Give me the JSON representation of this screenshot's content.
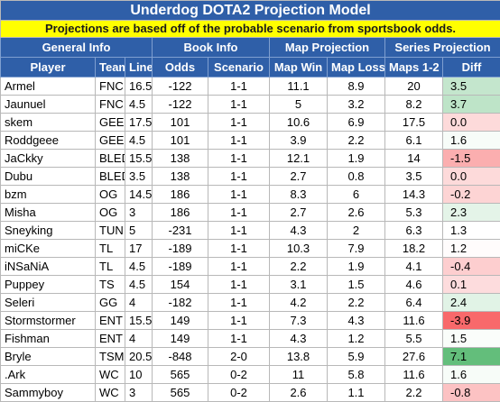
{
  "header": {
    "title": "Underdog DOTA2 Projection Model",
    "subtitle": "Projections are based off of the probable scenario from sportsbook odds."
  },
  "table": {
    "groups": [
      "General Info",
      "Book Info",
      "Map Projection",
      "Series Projection"
    ],
    "columns": [
      "Player",
      "Team",
      "Line",
      "Odds",
      "Scenario",
      "Map Win",
      "Map Loss",
      "Maps 1-2",
      "Diff"
    ],
    "rows": [
      [
        "Armel",
        "FNC",
        "16.5",
        "-122",
        "1-1",
        "11.1",
        "8.9",
        "20",
        "3.5"
      ],
      [
        "Jaunuel",
        "FNC",
        "4.5",
        "-122",
        "1-1",
        "5",
        "3.2",
        "8.2",
        "3.7"
      ],
      [
        "skem",
        "GEEK",
        "17.5",
        "101",
        "1-1",
        "10.6",
        "6.9",
        "17.5",
        "0.0"
      ],
      [
        "Roddgeee",
        "GEEK",
        "4.5",
        "101",
        "1-1",
        "3.9",
        "2.2",
        "6.1",
        "1.6"
      ],
      [
        "JaCkky",
        "BLED",
        "15.5",
        "138",
        "1-1",
        "12.1",
        "1.9",
        "14",
        "-1.5"
      ],
      [
        "Dubu",
        "BLED",
        "3.5",
        "138",
        "1-1",
        "2.7",
        "0.8",
        "3.5",
        "0.0"
      ],
      [
        "bzm",
        "OG",
        "14.5",
        "186",
        "1-1",
        "8.3",
        "6",
        "14.3",
        "-0.2"
      ],
      [
        "Misha",
        "OG",
        "3",
        "186",
        "1-1",
        "2.7",
        "2.6",
        "5.3",
        "2.3"
      ],
      [
        "Sneyking",
        "TUN",
        "5",
        "-231",
        "1-1",
        "4.3",
        "2",
        "6.3",
        "1.3"
      ],
      [
        "miCKe",
        "TL",
        "17",
        "-189",
        "1-1",
        "10.3",
        "7.9",
        "18.2",
        "1.2"
      ],
      [
        "iNSaNiA",
        "TL",
        "4.5",
        "-189",
        "1-1",
        "2.2",
        "1.9",
        "4.1",
        "-0.4"
      ],
      [
        "Puppey",
        "TS",
        "4.5",
        "154",
        "1-1",
        "3.1",
        "1.5",
        "4.6",
        "0.1"
      ],
      [
        "Seleri",
        "GG",
        "4",
        "-182",
        "1-1",
        "4.2",
        "2.2",
        "6.4",
        "2.4"
      ],
      [
        "Stormstormer",
        "ENT",
        "15.5",
        "149",
        "1-1",
        "7.3",
        "4.3",
        "11.6",
        "-3.9"
      ],
      [
        "Fishman",
        "ENT",
        "4",
        "149",
        "1-1",
        "4.3",
        "1.2",
        "5.5",
        "1.5"
      ],
      [
        "Bryle",
        "TSM",
        "20.5",
        "-848",
        "2-0",
        "13.8",
        "5.9",
        "27.6",
        "7.1"
      ],
      [
        ".Ark",
        "WC",
        "10",
        "565",
        "0-2",
        "11",
        "5.8",
        "11.6",
        "1.6"
      ],
      [
        "Sammyboy",
        "WC",
        "3",
        "565",
        "0-2",
        "2.6",
        "1.1",
        "2.2",
        "-0.8"
      ]
    ]
  }
}
